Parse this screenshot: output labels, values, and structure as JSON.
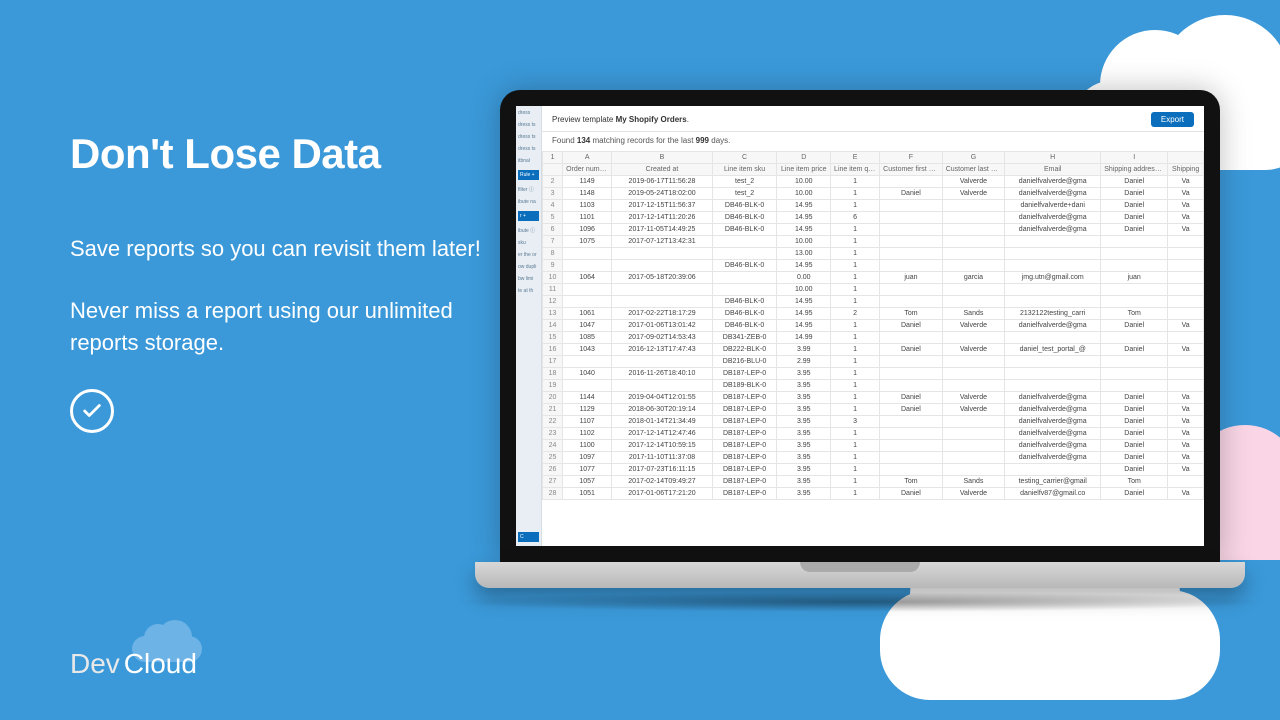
{
  "headline": "Don't Lose Data",
  "body1": "Save reports so you can revisit them later!",
  "body2": "Never miss a report using our unlimited reports storage.",
  "logo": {
    "dev": "Dev",
    "cloud": "Cloud"
  },
  "report": {
    "title_prefix": "Preview template ",
    "title_bold": "My Shopify Orders",
    "title_suffix": ".",
    "export": "Export",
    "sub_found": "Found ",
    "sub_count": "134",
    "sub_mid": " matching records for the last ",
    "sub_days": "999",
    "sub_end": " days.",
    "col_letters": [
      "A",
      "B",
      "C",
      "D",
      "E",
      "F",
      "G",
      "H",
      "I",
      ""
    ],
    "columns": [
      "Order number",
      "Created at",
      "Line item sku",
      "Line item price",
      "Line item quantity",
      "Customer first name",
      "Customer last name",
      "Email",
      "Shipping address first",
      "Shipping"
    ],
    "rows": [
      {
        "n": 2,
        "order": "1149",
        "date": "2019-06-17T11:56:28",
        "sku": "test_2",
        "price": "10.00",
        "qty": "1",
        "fn": "",
        "ln": "Valverde",
        "em": "danielfvalverde@gma",
        "s1": "Daniel",
        "s2": "Va"
      },
      {
        "n": 3,
        "order": "1148",
        "date": "2019-05-24T18:02:00",
        "sku": "test_2",
        "price": "10.00",
        "qty": "1",
        "fn": "Daniel",
        "ln": "Valverde",
        "em": "danielfvalverde@gma",
        "s1": "Daniel",
        "s2": "Va"
      },
      {
        "n": 4,
        "order": "1103",
        "date": "2017-12-15T11:56:37",
        "sku": "DB46-BLK-0",
        "price": "14.95",
        "qty": "1",
        "fn": "",
        "ln": "",
        "em": "danielfvalverde+dani",
        "s1": "Daniel",
        "s2": "Va"
      },
      {
        "n": 5,
        "order": "1101",
        "date": "2017-12-14T11:20:26",
        "sku": "DB46-BLK-0",
        "price": "14.95",
        "qty": "6",
        "fn": "",
        "ln": "",
        "em": "danielfvalverde@gma",
        "s1": "Daniel",
        "s2": "Va"
      },
      {
        "n": 6,
        "order": "1096",
        "date": "2017-11-05T14:49:25",
        "sku": "DB46-BLK-0",
        "price": "14.95",
        "qty": "1",
        "fn": "",
        "ln": "",
        "em": "danielfvalverde@gma",
        "s1": "Daniel",
        "s2": "Va"
      },
      {
        "n": 7,
        "order": "1075",
        "date": "2017-07-12T13:42:31",
        "sku": "",
        "price": "10.00",
        "qty": "1",
        "fn": "",
        "ln": "",
        "em": "",
        "s1": "",
        "s2": ""
      },
      {
        "n": 8,
        "order": "",
        "date": "",
        "sku": "",
        "price": "13.00",
        "qty": "1",
        "fn": "",
        "ln": "",
        "em": "",
        "s1": "",
        "s2": ""
      },
      {
        "n": 9,
        "order": "",
        "date": "",
        "sku": "DB46-BLK-0",
        "price": "14.95",
        "qty": "1",
        "fn": "",
        "ln": "",
        "em": "",
        "s1": "",
        "s2": ""
      },
      {
        "n": 10,
        "order": "1064",
        "date": "2017-05-18T20:39:06",
        "sku": "",
        "price": "0.00",
        "qty": "1",
        "fn": "juan",
        "ln": "garcia",
        "em": "jmg.utn@gmail.com",
        "s1": "juan",
        "s2": ""
      },
      {
        "n": 11,
        "order": "",
        "date": "",
        "sku": "",
        "price": "10.00",
        "qty": "1",
        "fn": "",
        "ln": "",
        "em": "",
        "s1": "",
        "s2": ""
      },
      {
        "n": 12,
        "order": "",
        "date": "",
        "sku": "DB46-BLK-0",
        "price": "14.95",
        "qty": "1",
        "fn": "",
        "ln": "",
        "em": "",
        "s1": "",
        "s2": ""
      },
      {
        "n": 13,
        "order": "1061",
        "date": "2017-02-22T18:17:29",
        "sku": "DB46-BLK-0",
        "price": "14.95",
        "qty": "2",
        "fn": "Tom",
        "ln": "Sands",
        "em": "2132122testing_carri",
        "s1": "Tom",
        "s2": ""
      },
      {
        "n": 14,
        "order": "1047",
        "date": "2017-01-06T13:01:42",
        "sku": "DB46-BLK-0",
        "price": "14.95",
        "qty": "1",
        "fn": "Daniel",
        "ln": "Valverde",
        "em": "danielfvalverde@gma",
        "s1": "Daniel",
        "s2": "Va"
      },
      {
        "n": 15,
        "order": "1085",
        "date": "2017-09-02T14:53:43",
        "sku": "DB341-ZEB-0",
        "price": "14.99",
        "qty": "1",
        "fn": "",
        "ln": "",
        "em": "",
        "s1": "",
        "s2": ""
      },
      {
        "n": 16,
        "order": "1043",
        "date": "2016-12-13T17:47:43",
        "sku": "DB222-BLK-0",
        "price": "3.99",
        "qty": "1",
        "fn": "Daniel",
        "ln": "Valverde",
        "em": "daniel_test_portal_@",
        "s1": "Daniel",
        "s2": "Va"
      },
      {
        "n": 17,
        "order": "",
        "date": "",
        "sku": "DB216-BLU-0",
        "price": "2.99",
        "qty": "1",
        "fn": "",
        "ln": "",
        "em": "",
        "s1": "",
        "s2": ""
      },
      {
        "n": 18,
        "order": "1040",
        "date": "2016-11-26T18:40:10",
        "sku": "DB187-LEP-0",
        "price": "3.95",
        "qty": "1",
        "fn": "",
        "ln": "",
        "em": "",
        "s1": "",
        "s2": ""
      },
      {
        "n": 19,
        "order": "",
        "date": "",
        "sku": "DB189-BLK-0",
        "price": "3.95",
        "qty": "1",
        "fn": "",
        "ln": "",
        "em": "",
        "s1": "",
        "s2": ""
      },
      {
        "n": 20,
        "order": "1144",
        "date": "2019-04-04T12:01:55",
        "sku": "DB187-LEP-0",
        "price": "3.95",
        "qty": "1",
        "fn": "Daniel",
        "ln": "Valverde",
        "em": "danielfvalverde@gma",
        "s1": "Daniel",
        "s2": "Va"
      },
      {
        "n": 21,
        "order": "1129",
        "date": "2018-06-30T20:19:14",
        "sku": "DB187-LEP-0",
        "price": "3.95",
        "qty": "1",
        "fn": "Daniel",
        "ln": "Valverde",
        "em": "danielfvalverde@gma",
        "s1": "Daniel",
        "s2": "Va"
      },
      {
        "n": 22,
        "order": "1107",
        "date": "2018-01-14T21:34:49",
        "sku": "DB187-LEP-0",
        "price": "3.95",
        "qty": "3",
        "fn": "",
        "ln": "",
        "em": "danielfvalverde@gma",
        "s1": "Daniel",
        "s2": "Va"
      },
      {
        "n": 23,
        "order": "1102",
        "date": "2017-12-14T12:47:46",
        "sku": "DB187-LEP-0",
        "price": "3.95",
        "qty": "1",
        "fn": "",
        "ln": "",
        "em": "danielfvalverde@gma",
        "s1": "Daniel",
        "s2": "Va"
      },
      {
        "n": 24,
        "order": "1100",
        "date": "2017-12-14T10:59:15",
        "sku": "DB187-LEP-0",
        "price": "3.95",
        "qty": "1",
        "fn": "",
        "ln": "",
        "em": "danielfvalverde@gma",
        "s1": "Daniel",
        "s2": "Va"
      },
      {
        "n": 25,
        "order": "1097",
        "date": "2017-11-10T11:37:08",
        "sku": "DB187-LEP-0",
        "price": "3.95",
        "qty": "1",
        "fn": "",
        "ln": "",
        "em": "danielfvalverde@gma",
        "s1": "Daniel",
        "s2": "Va"
      },
      {
        "n": 26,
        "order": "1077",
        "date": "2017-07-23T16:11:15",
        "sku": "DB187-LEP-0",
        "price": "3.95",
        "qty": "1",
        "fn": "",
        "ln": "",
        "em": "",
        "s1": "Daniel",
        "s2": "Va"
      },
      {
        "n": 27,
        "order": "1057",
        "date": "2017-02-14T09:49:27",
        "sku": "DB187-LEP-0",
        "price": "3.95",
        "qty": "1",
        "fn": "Tom",
        "ln": "Sands",
        "em": "testing_carrier@gmail",
        "s1": "Tom",
        "s2": ""
      },
      {
        "n": 28,
        "order": "1051",
        "date": "2017-01-06T17:21:20",
        "sku": "DB187-LEP-0",
        "price": "3.95",
        "qty": "1",
        "fn": "Daniel",
        "ln": "Valverde",
        "em": "danielfv87@gmail.co",
        "s1": "Daniel",
        "s2": "Va"
      }
    ]
  },
  "colors": {
    "bg": "#3b99d9",
    "accent": "#0a6ebd",
    "pink": "#f9d5e5"
  }
}
